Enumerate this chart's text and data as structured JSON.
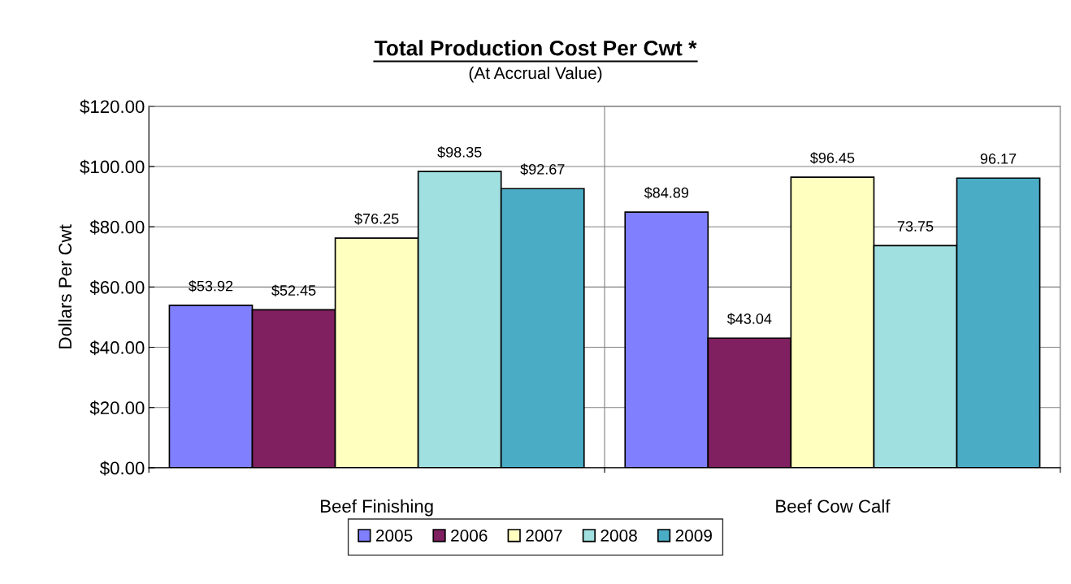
{
  "chart_data": {
    "type": "bar",
    "title": "Total Production Cost Per Cwt *",
    "subtitle": "(At Accrual Value)",
    "ylabel": "Dollars Per Cwt",
    "categories": [
      "Beef Finishing",
      "Beef Cow Calf"
    ],
    "series": [
      {
        "name": "2005",
        "color": "#8080ff",
        "values": [
          53.92,
          84.89
        ],
        "value_labels": [
          "$53.92",
          "$84.89"
        ]
      },
      {
        "name": "2006",
        "color": "#802060",
        "values": [
          52.45,
          43.04
        ],
        "value_labels": [
          "$52.45",
          "$43.04"
        ]
      },
      {
        "name": "2007",
        "color": "#ffffc0",
        "values": [
          76.25,
          96.45
        ],
        "value_labels": [
          "$76.25",
          "$96.45"
        ]
      },
      {
        "name": "2008",
        "color": "#a0e0e0",
        "values": [
          98.35,
          73.75
        ],
        "value_labels": [
          "$98.35",
          "73.75"
        ]
      },
      {
        "name": "2009",
        "color": "#4bacc6",
        "values": [
          92.67,
          96.17
        ],
        "value_labels": [
          "$92.67",
          "96.17"
        ]
      }
    ],
    "ylim": [
      0,
      120
    ],
    "yticks": [
      {
        "value": 0,
        "label": "$0.00"
      },
      {
        "value": 20,
        "label": "$20.00"
      },
      {
        "value": 40,
        "label": "$40.00"
      },
      {
        "value": 60,
        "label": "$60.00"
      },
      {
        "value": 80,
        "label": "$80.00"
      },
      {
        "value": 100,
        "label": "$100.00"
      },
      {
        "value": 120,
        "label": "$120.00"
      }
    ],
    "grid": true,
    "legend": "bottom"
  }
}
